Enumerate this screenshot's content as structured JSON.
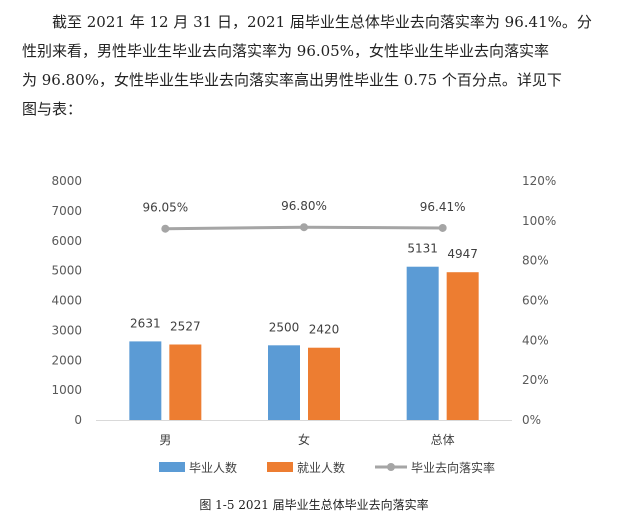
{
  "paragraph": {
    "lines": [
      "截至 2021 年 12 月 31 日，2021 届毕业生总体毕业去向落实率为 96.41%。分",
      "性别来看，男性毕业生毕业去向落实率为 96.05%，女性毕业生毕业去向落实率",
      "为 96.80%，女性毕业生毕业去向落实率高出男性毕业生 0.75 个百分点。详见下",
      "图与表："
    ]
  },
  "caption": "图 1-5 2021 届毕业生总体毕业去向落实率",
  "chart_data": {
    "type": "bar",
    "categories": [
      "男",
      "女",
      "总体"
    ],
    "series": [
      {
        "name": "毕业人数",
        "type": "bar",
        "axis": "left",
        "color": "#5B9BD5",
        "values": [
          2631,
          2500,
          5131
        ]
      },
      {
        "name": "就业人数",
        "type": "bar",
        "axis": "left",
        "color": "#ED7D31",
        "values": [
          2527,
          2420,
          4947
        ]
      },
      {
        "name": "毕业去向落实率",
        "type": "line",
        "axis": "right",
        "color": "#A5A5A5",
        "values": [
          96.05,
          96.8,
          96.41
        ],
        "labels": [
          "96.05%",
          "96.80%",
          "96.41%"
        ]
      }
    ],
    "ylim": [
      0,
      8000
    ],
    "yticks": [
      0,
      1000,
      2000,
      3000,
      4000,
      5000,
      6000,
      7000,
      8000
    ],
    "y2lim": [
      0,
      120
    ],
    "y2ticks": [
      "0%",
      "20%",
      "40%",
      "60%",
      "80%",
      "100%",
      "120%"
    ],
    "grid": false,
    "legend_position": "bottom"
  }
}
